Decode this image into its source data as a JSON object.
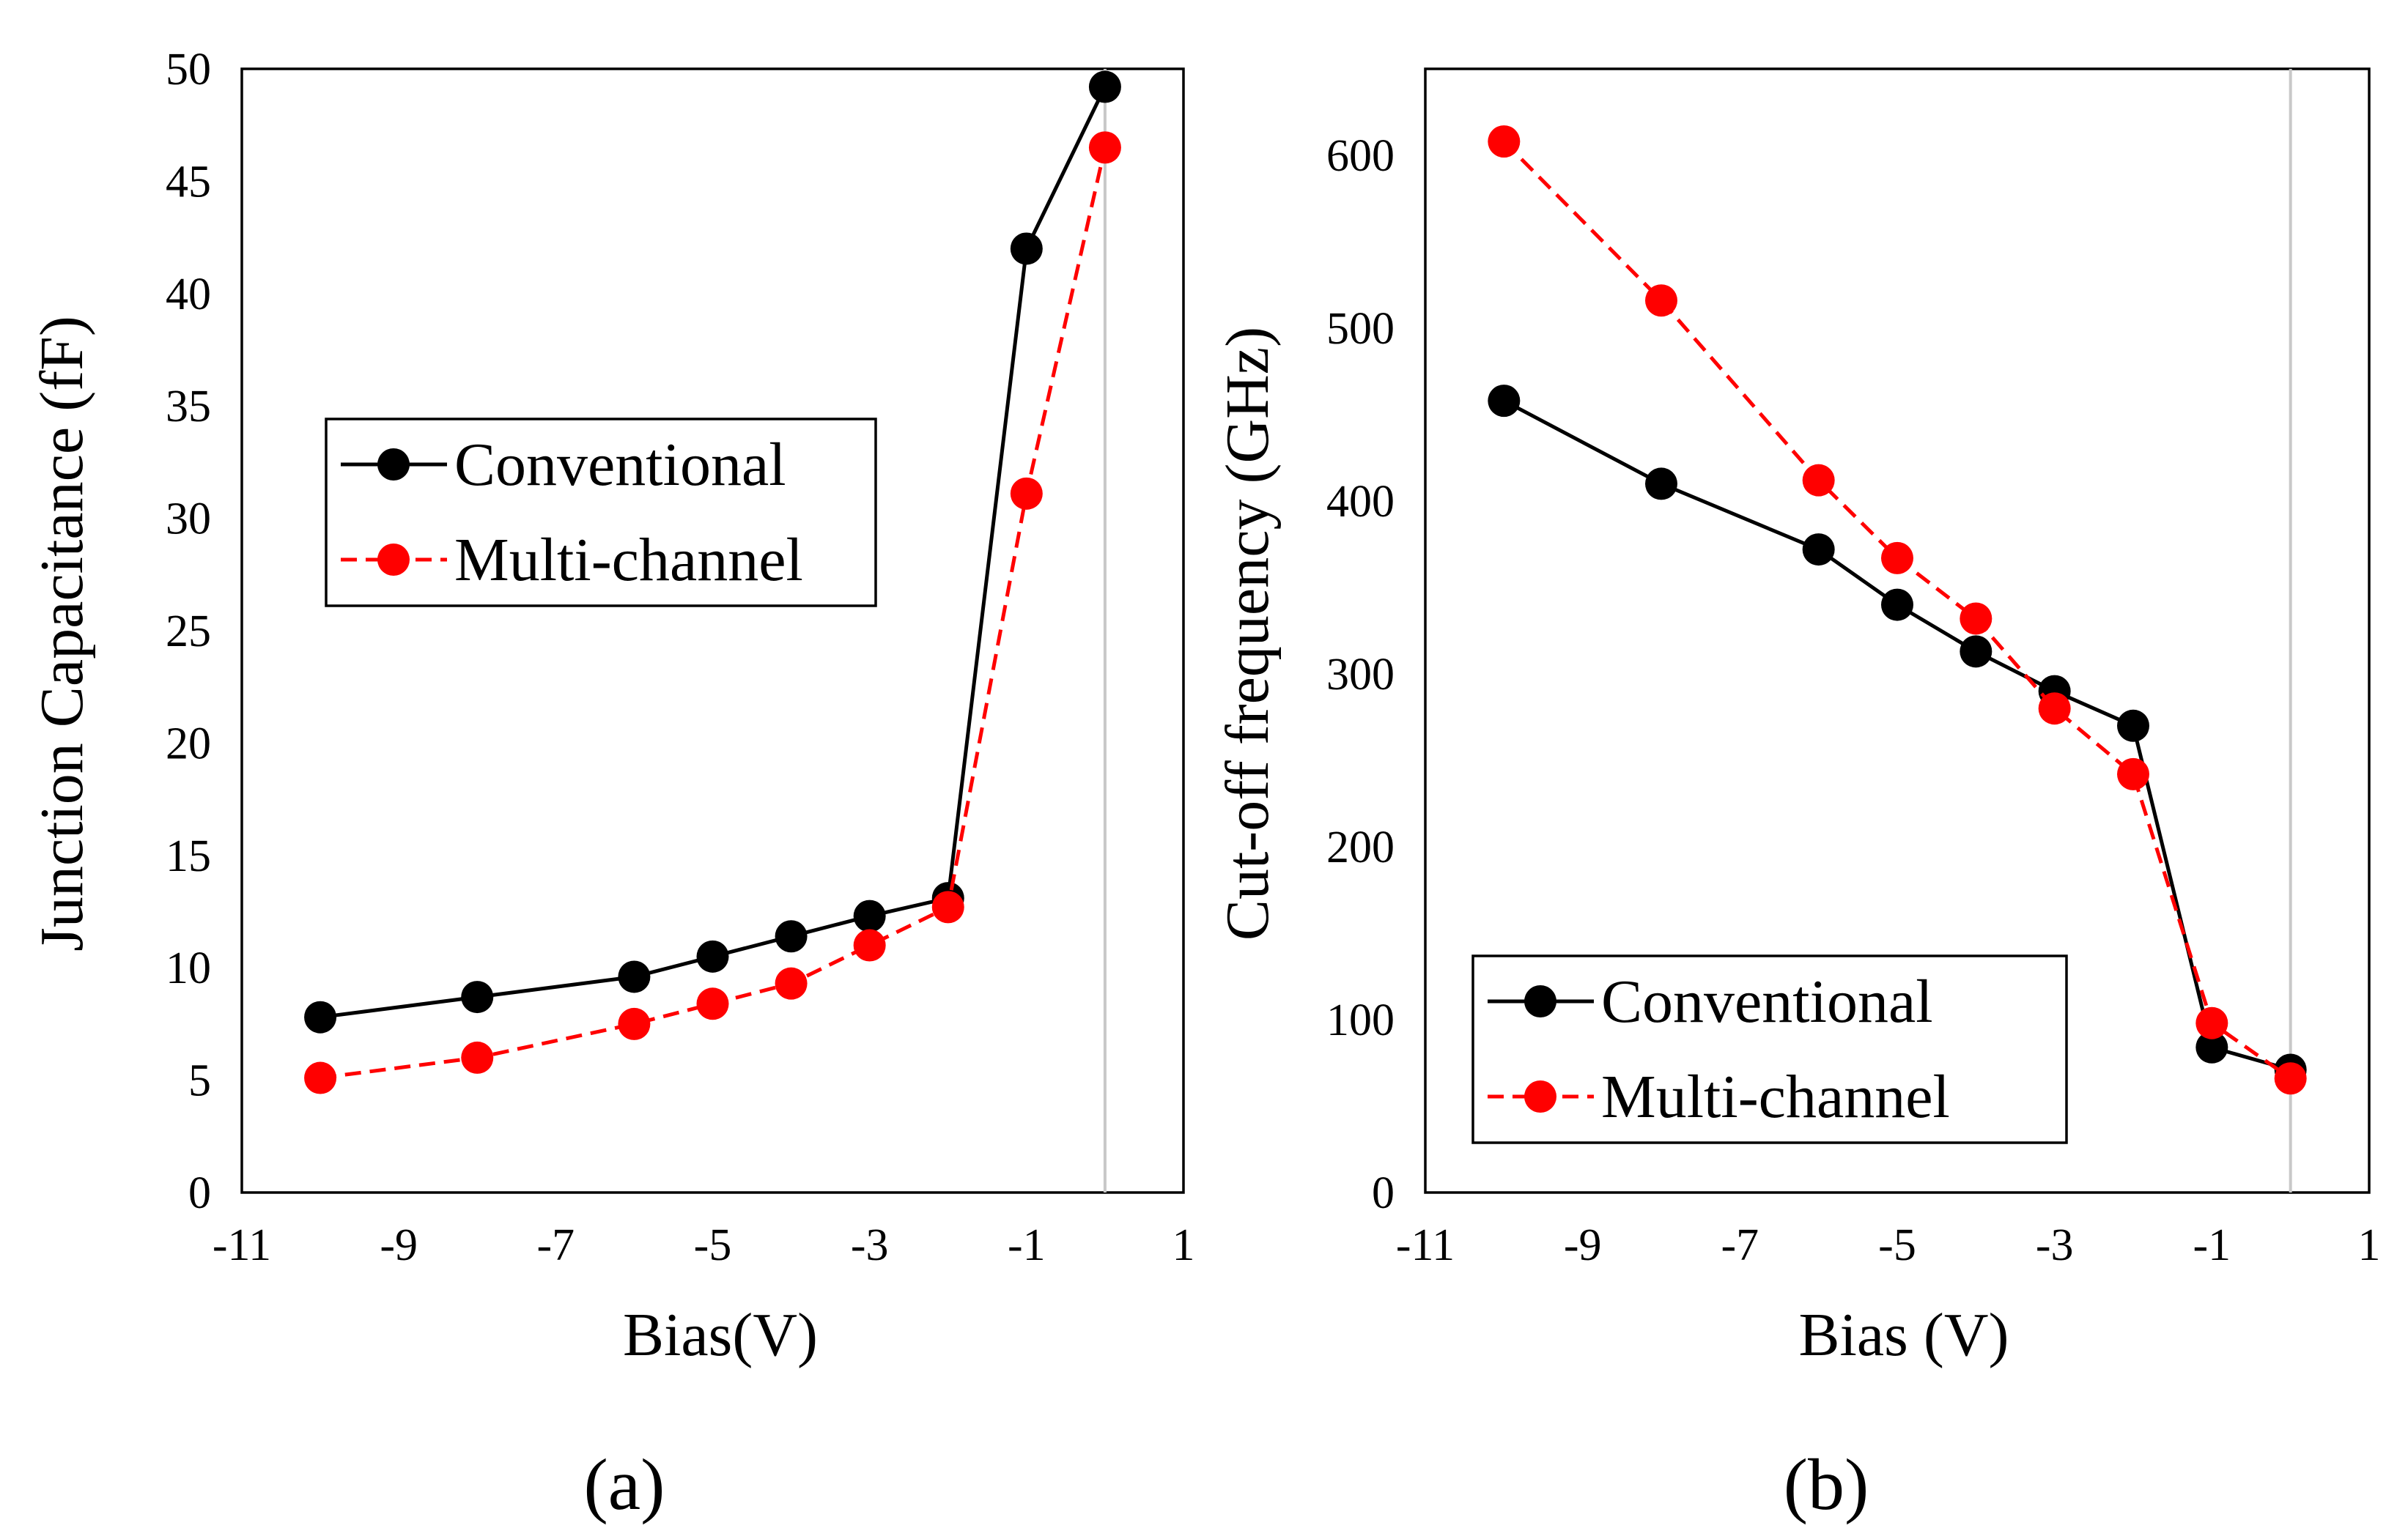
{
  "colors": {
    "conventional": "#000000",
    "multi_channel": "#ff0000",
    "zero_line": "#c8c8c8"
  },
  "chart_data": [
    {
      "type": "line",
      "panel_label": "(a)",
      "xlabel": "Bias(V)",
      "ylabel": "Junction Capacitance (fF)",
      "xlim": [
        -11,
        1
      ],
      "ylim": [
        0,
        50
      ],
      "xticks": [
        -11,
        -9,
        -7,
        -5,
        -3,
        -1,
        1
      ],
      "yticks": [
        0,
        5,
        10,
        15,
        20,
        25,
        30,
        35,
        40,
        45,
        50
      ],
      "grid": false,
      "legend_position": "middle-left",
      "series": [
        {
          "name": "Conventional",
          "color": "#000000",
          "line_style": "solid",
          "marker": "filled-circle",
          "x": [
            -10,
            -8,
            -6,
            -5,
            -4,
            -3,
            -2,
            -1,
            0
          ],
          "y": [
            7.8,
            8.7,
            9.6,
            10.5,
            11.4,
            12.3,
            13.1,
            42,
            49.2
          ]
        },
        {
          "name": "Multi-channel",
          "color": "#ff0000",
          "line_style": "dashed",
          "marker": "filled-circle",
          "x": [
            -10,
            -8,
            -6,
            -5,
            -4,
            -3,
            -2,
            -1,
            0
          ],
          "y": [
            5.1,
            6.0,
            7.5,
            8.4,
            9.3,
            11.0,
            12.7,
            31.1,
            46.5
          ]
        }
      ]
    },
    {
      "type": "line",
      "panel_label": "(b)",
      "xlabel": "Bias (V)",
      "ylabel": "Cut-off frequency (GHz)",
      "xlim": [
        -11,
        1
      ],
      "ylim": [
        0,
        650
      ],
      "xticks": [
        -11,
        -9,
        -7,
        -5,
        -3,
        -1,
        1
      ],
      "yticks": [
        0,
        100,
        200,
        300,
        400,
        500,
        600
      ],
      "grid": false,
      "legend_position": "bottom-left",
      "series": [
        {
          "name": "Conventional",
          "color": "#000000",
          "line_style": "solid",
          "marker": "filled-circle",
          "x": [
            -10,
            -8,
            -6,
            -5,
            -4,
            -3,
            -2,
            -1,
            0
          ],
          "y": [
            458,
            410,
            372,
            340,
            313,
            290,
            270,
            84,
            71
          ]
        },
        {
          "name": "Multi-channel",
          "color": "#ff0000",
          "line_style": "dashed",
          "marker": "filled-circle",
          "x": [
            -10,
            -8,
            -6,
            -5,
            -4,
            -3,
            -2,
            -1,
            0
          ],
          "y": [
            608,
            516,
            412,
            367,
            332,
            280,
            242,
            98,
            66
          ]
        }
      ]
    }
  ]
}
